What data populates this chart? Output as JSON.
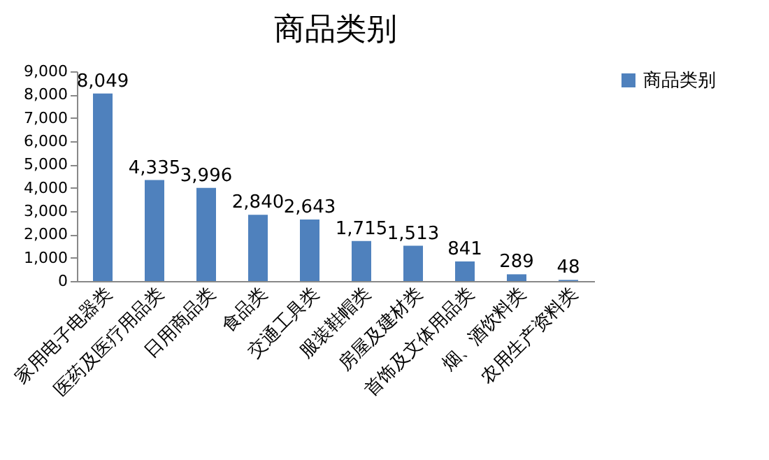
{
  "chart_data": {
    "type": "bar",
    "title": "商品类别",
    "categories": [
      "家用电子电器类",
      "医药及医疗用品类",
      "日用商品类",
      "食品类",
      "交通工具类",
      "服装鞋帽类",
      "房屋及建材类",
      "首饰及文体用品类",
      "烟、酒饮料类",
      "农用生产资料类"
    ],
    "series": [
      {
        "name": "商品类别",
        "color": "#4f81bd",
        "values": [
          8049,
          4335,
          3996,
          2840,
          2643,
          1715,
          1513,
          841,
          289,
          48
        ],
        "value_labels": [
          "8,049",
          "4,335",
          "3,996",
          "2,840",
          "2,643",
          "1,715",
          "1,513",
          "841",
          "289",
          "48"
        ]
      }
    ],
    "ylim": [
      0,
      9000
    ],
    "yticks": [
      0,
      {
        "value": 1000,
        "label": "1,000"
      },
      {
        "value": 2000,
        "label": "2,000"
      },
      {
        "value": 3000,
        "label": "3,000"
      },
      {
        "value": 4000,
        "label": "4,000"
      },
      {
        "value": 5000,
        "label": "5,000"
      },
      {
        "value": 6000,
        "label": "6,000"
      },
      {
        "value": 7000,
        "label": "7,000"
      },
      {
        "value": 8000,
        "label": "8,000"
      },
      {
        "value": 9000,
        "label": "9,000"
      }
    ],
    "grid": false,
    "legend": "right"
  }
}
